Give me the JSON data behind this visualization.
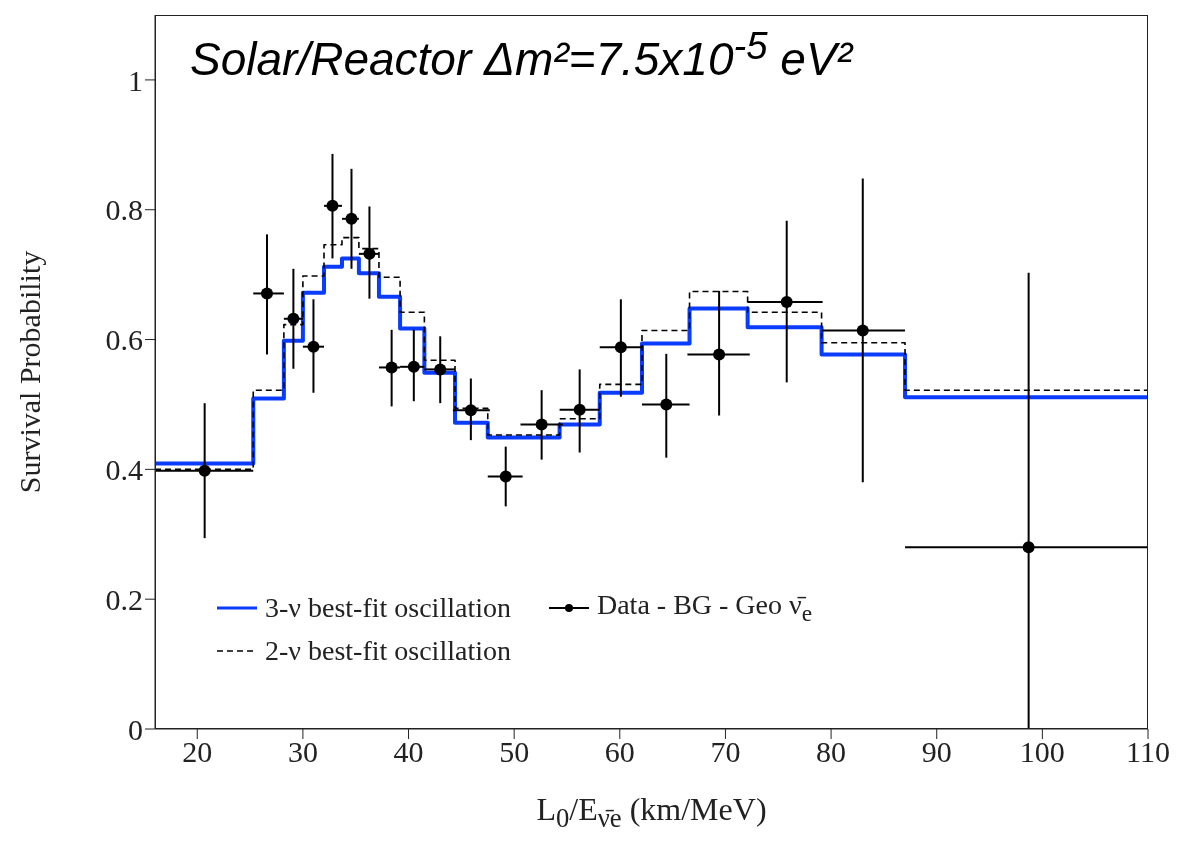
{
  "chart_data": {
    "type": "step",
    "title": "Solar/Reactor Δm²=7.5x10$^{-5}$ eV²",
    "xlabel": "L$_{0}$/E$_{ν̄e}$ (km/MeV)",
    "ylabel": "Survival Probability",
    "xlim": [
      16,
      110
    ],
    "ylim": [
      0,
      1.1
    ],
    "xticks": [
      20,
      30,
      40,
      50,
      60,
      70,
      80,
      90,
      100,
      110
    ],
    "yticks": [
      0,
      0.2,
      0.4,
      0.6,
      0.8,
      1
    ],
    "legend": "bottom left",
    "series": [
      {
        "name": "3-ν best-fit oscillation",
        "color": "#0a3cff",
        "line_style": "solid",
        "x": [
          16,
          25.3,
          28.2,
          30.0,
          32.0,
          33.7,
          35.3,
          37.2,
          39.2,
          41.5,
          44.4,
          47.5,
          54.3,
          58.1,
          62.1,
          66.6,
          72.1,
          79.1,
          87.0,
          110
        ],
        "values": [
          0.409,
          0.509,
          0.598,
          0.672,
          0.712,
          0.725,
          0.702,
          0.666,
          0.617,
          0.549,
          0.472,
          0.449,
          0.469,
          0.518,
          0.594,
          0.648,
          0.619,
          0.577,
          0.511,
          0.511
        ]
      },
      {
        "name": "2-ν best-fit oscillation",
        "color": "#000000",
        "line_style": "dashed",
        "x": [
          16,
          25.3,
          28.2,
          30.0,
          32.0,
          33.7,
          35.3,
          37.2,
          39.2,
          41.5,
          44.4,
          47.5,
          54.3,
          58.1,
          62.1,
          66.6,
          72.1,
          79.1,
          87.0,
          110
        ],
        "values": [
          0.4,
          0.522,
          0.623,
          0.698,
          0.746,
          0.757,
          0.74,
          0.696,
          0.642,
          0.568,
          0.494,
          0.453,
          0.478,
          0.531,
          0.614,
          0.674,
          0.642,
          0.595,
          0.522,
          0.522
        ]
      },
      {
        "name": "Data - BG - Geo ν̄$_{e}$",
        "type": "scatter",
        "marker": "circle",
        "color": "#000000",
        "x": [
          20.7,
          26.6,
          29.1,
          31.0,
          32.8,
          34.6,
          36.3,
          38.4,
          40.5,
          43.0,
          45.9,
          49.2,
          52.6,
          56.2,
          60.1,
          64.4,
          69.4,
          75.8,
          83.0,
          98.7
        ],
        "values": [
          0.398,
          0.671,
          0.632,
          0.589,
          0.806,
          0.786,
          0.732,
          0.557,
          0.558,
          0.554,
          0.491,
          0.389,
          0.469,
          0.492,
          0.588,
          0.5,
          0.577,
          0.658,
          0.614,
          0.28
        ],
        "errors": [
          [
            0.294,
            0.502
          ],
          [
            0.577,
            0.762
          ],
          [
            0.555,
            0.709
          ],
          [
            0.518,
            0.662
          ],
          [
            0.725,
            0.886
          ],
          [
            0.709,
            0.863
          ],
          [
            0.663,
            0.805
          ],
          [
            0.497,
            0.615
          ],
          [
            0.505,
            0.615
          ],
          [
            0.502,
            0.605
          ],
          [
            0.445,
            0.54
          ],
          [
            0.343,
            0.435
          ],
          [
            0.415,
            0.522
          ],
          [
            0.426,
            0.554
          ],
          [
            0.512,
            0.662
          ],
          [
            0.418,
            0.578
          ],
          [
            0.483,
            0.675
          ],
          [
            0.534,
            0.783
          ],
          [
            0.38,
            0.848
          ],
          [
            0,
            0.703
          ]
        ],
        "xerrors": [
          [
            16,
            25.3
          ],
          [
            25.3,
            28.2
          ],
          [
            28.2,
            30.0
          ],
          [
            30.0,
            32.0
          ],
          [
            32.0,
            33.7
          ],
          [
            33.7,
            35.3
          ],
          [
            35.3,
            37.2
          ],
          [
            37.2,
            39.2
          ],
          [
            39.2,
            41.5
          ],
          [
            41.5,
            44.4
          ],
          [
            44.2,
            47.7
          ],
          [
            47.5,
            50.8
          ],
          [
            50.6,
            54.6
          ],
          [
            54.3,
            58.1
          ],
          [
            58.1,
            62.2
          ],
          [
            62.1,
            66.6
          ],
          [
            66.4,
            72.3
          ],
          [
            72.1,
            79.2
          ],
          [
            79.1,
            87.0
          ],
          [
            87.0,
            110
          ]
        ]
      }
    ]
  }
}
